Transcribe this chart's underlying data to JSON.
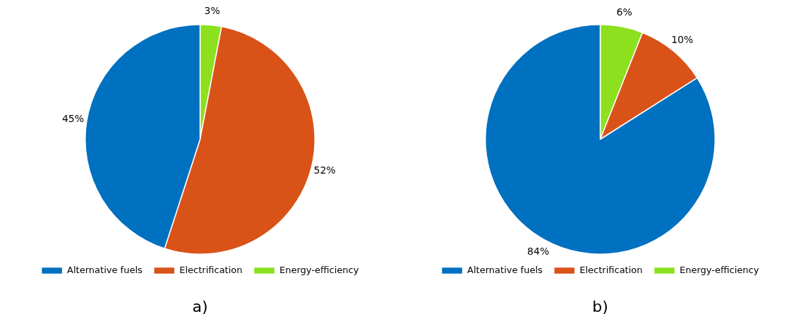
{
  "chart_data": [
    {
      "type": "pie",
      "categories": [
        "Alternative fuels",
        "Electrification",
        "Energy-efficiency"
      ],
      "values": [
        45,
        52,
        3
      ],
      "colors": [
        "#0070c0",
        "#d95319",
        "#8ce01e"
      ],
      "value_labels": [
        "45%",
        "52%",
        "3%"
      ],
      "legend": "bottom",
      "annotations": [
        "a)"
      ]
    },
    {
      "type": "pie",
      "categories": [
        "Alternative fuels",
        "Electrification",
        "Energy-efficiency"
      ],
      "values": [
        84,
        10,
        6
      ],
      "colors": [
        "#0070c0",
        "#d95319",
        "#8ce01e"
      ],
      "value_labels": [
        "84%",
        "10%",
        "6%"
      ],
      "legend": "bottom",
      "annotations": [
        "b)"
      ]
    }
  ]
}
